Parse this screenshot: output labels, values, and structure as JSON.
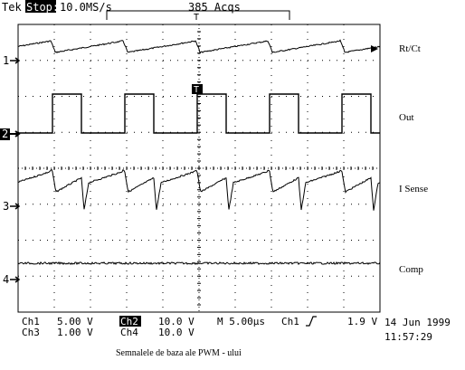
{
  "status_bar": {
    "brand": "Tek",
    "run_state": "Stop:",
    "sample_rate": "10.0MS/s",
    "acquisitions": "385 Acqs"
  },
  "trigger_marker": "T",
  "channels": [
    {
      "number": "1",
      "label": "Rt/Ct"
    },
    {
      "number": "2",
      "label": "Out"
    },
    {
      "number": "3",
      "label": "I Sense"
    },
    {
      "number": "4",
      "label": "Comp"
    }
  ],
  "readout": {
    "ch1_name": "Ch1",
    "ch1_scale": "5.00 V",
    "ch2_name": "Ch2",
    "ch2_scale": "10.0 V",
    "ch3_name": "Ch3",
    "ch3_scale": "1.00 V",
    "ch4_name": "Ch4",
    "ch4_scale": "10.0 V",
    "timebase": "M 5.00µs",
    "trigger_source": "Ch1",
    "trigger_level": "1.9 V",
    "date": "14 Jun 1999",
    "time": "11:57:29"
  },
  "caption": "Semnalele de baza ale PWM - ului",
  "colors": {
    "trace": "#000000",
    "background": "#ffffff",
    "highlight_bg": "#000000",
    "highlight_fg": "#ffffff"
  }
}
